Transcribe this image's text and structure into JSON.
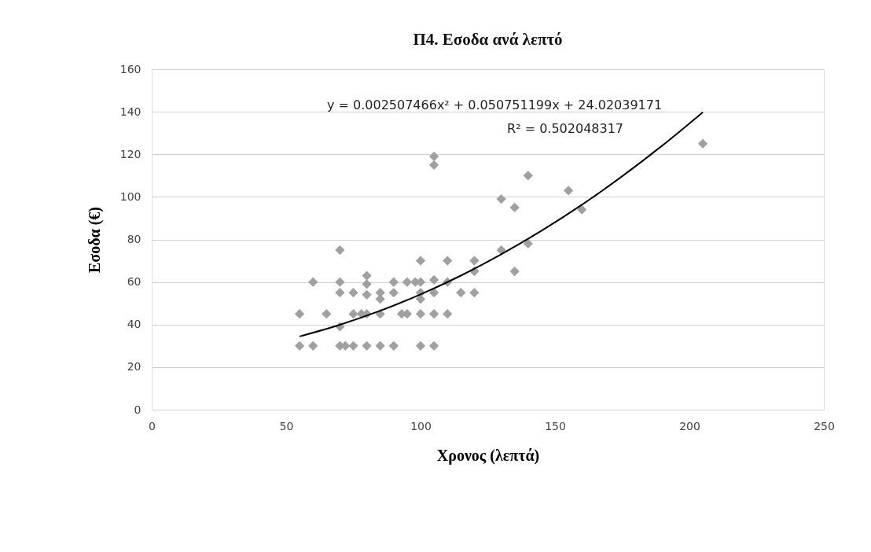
{
  "chart_data": {
    "type": "scatter",
    "title": "Π4. Εσοδα ανά λεπτό",
    "xlabel": "Χρονος (λεπτά)",
    "ylabel": "Εσοδα (€)",
    "annotations": [
      "y = 0.002507466x² + 0.050751199x + 24.02039171",
      "R² = 0.502048317"
    ],
    "xlim": [
      0,
      250
    ],
    "xticks": [
      0,
      50,
      100,
      150,
      200,
      250
    ],
    "ylim": [
      0,
      160
    ],
    "yticks": [
      0,
      20,
      40,
      60,
      80,
      100,
      120,
      140,
      160
    ],
    "grid": "y",
    "marker": "diamond",
    "series": [
      {
        "color": "#a0a0a0",
        "x": [
          55,
          55,
          60,
          60,
          65,
          70,
          70,
          70,
          70,
          70,
          72,
          75,
          75,
          75,
          78,
          80,
          80,
          80,
          80,
          80,
          85,
          85,
          85,
          85,
          90,
          90,
          90,
          93,
          95,
          95,
          98,
          100,
          100,
          100,
          100,
          100,
          100,
          105,
          105,
          105,
          105,
          105,
          105,
          110,
          110,
          110,
          115,
          120,
          120,
          120,
          130,
          130,
          135,
          135,
          140,
          140,
          155,
          160,
          205
        ],
        "values": [
          45,
          30,
          60,
          30,
          45,
          75,
          60,
          55,
          39,
          30,
          30,
          55,
          45,
          30,
          45,
          63,
          59,
          54,
          45,
          30,
          55,
          52,
          45,
          30,
          60,
          55,
          30,
          45,
          60,
          45,
          60,
          70,
          60,
          55,
          52,
          45,
          30,
          119,
          115,
          61,
          55,
          45,
          30,
          70,
          60,
          45,
          55,
          70,
          65,
          55,
          99,
          75,
          95,
          65,
          110,
          78,
          103,
          94,
          125
        ]
      },
      {
        "type": "line",
        "color": "#000000",
        "marker": "none",
        "x": [
          55,
          70,
          85,
          100,
          115,
          130,
          145,
          160,
          175,
          190,
          205
        ],
        "values": [
          34.4,
          39.9,
          46.5,
          54.2,
          63,
          73,
          84.1,
          96.3,
          109.7,
          124.2,
          139.8
        ]
      }
    ]
  }
}
